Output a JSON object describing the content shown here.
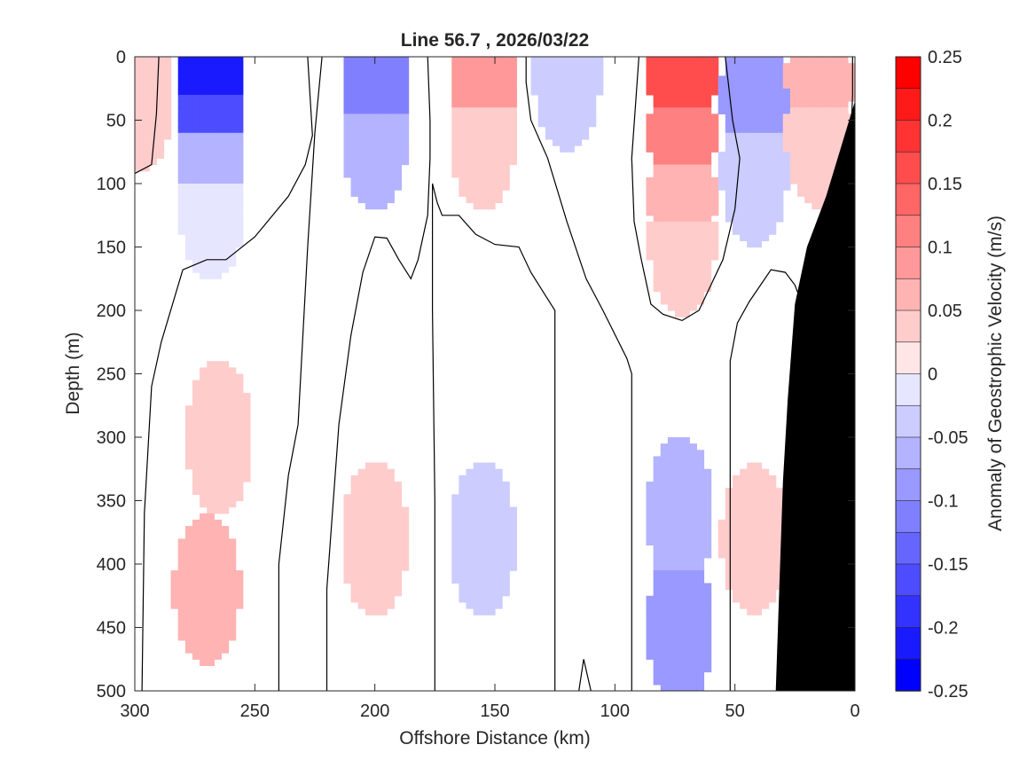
{
  "chart_data": {
    "type": "heatmap",
    "title": "Line 56.7 , 2026/03/22",
    "xlabel": "Offshore Distance (km)",
    "ylabel": "Depth (m)",
    "colorbar_label": "Anomaly of Geostrophic Velocity (m/s)",
    "xlim": [
      300,
      0
    ],
    "ylim": [
      0,
      500
    ],
    "x_ticks": [
      300,
      250,
      200,
      150,
      100,
      50,
      0
    ],
    "y_ticks": [
      0,
      50,
      100,
      150,
      200,
      250,
      300,
      350,
      400,
      450,
      500
    ],
    "colorbar_range": [
      -0.25,
      0.25
    ],
    "colorbar_step": 0.025,
    "colorbar_ticks": [
      "0.25",
      "0.2",
      "0.15",
      "0.1",
      "0.05",
      "0",
      "-0.05",
      "-0.1",
      "-0.15",
      "-0.2",
      "-0.25"
    ],
    "colormap": {
      "positive": "#ff0000",
      "negative": "#0000ff",
      "neutral": "#ffffff",
      "bottom_mask": "#000000",
      "contour_line": "#000000"
    },
    "anomaly_cells": [
      {
        "x": 298,
        "depth": 30,
        "value": 0.04
      },
      {
        "x": 268,
        "depth": 15,
        "value": -0.22
      },
      {
        "x": 268,
        "depth": 40,
        "value": -0.16
      },
      {
        "x": 268,
        "depth": 80,
        "value": -0.07
      },
      {
        "x": 268,
        "depth": 115,
        "value": -0.025
      },
      {
        "x": 200,
        "depth": 25,
        "value": -0.12
      },
      {
        "x": 200,
        "depth": 60,
        "value": -0.06
      },
      {
        "x": 155,
        "depth": 20,
        "value": 0.09
      },
      {
        "x": 155,
        "depth": 60,
        "value": 0.045
      },
      {
        "x": 120,
        "depth": 15,
        "value": -0.03
      },
      {
        "x": 72,
        "depth": 15,
        "value": 0.17
      },
      {
        "x": 72,
        "depth": 60,
        "value": 0.12
      },
      {
        "x": 72,
        "depth": 110,
        "value": 0.06
      },
      {
        "x": 72,
        "depth": 145,
        "value": 0.03
      },
      {
        "x": 42,
        "depth": 30,
        "value": -0.09
      },
      {
        "x": 42,
        "depth": 90,
        "value": -0.04
      },
      {
        "x": 15,
        "depth": 20,
        "value": 0.07
      },
      {
        "x": 15,
        "depth": 60,
        "value": 0.035
      },
      {
        "x": 265,
        "depth": 300,
        "value": 0.03
      },
      {
        "x": 270,
        "depth": 420,
        "value": 0.055
      },
      {
        "x": 200,
        "depth": 380,
        "value": 0.035
      },
      {
        "x": 155,
        "depth": 380,
        "value": -0.03
      },
      {
        "x": 73,
        "depth": 360,
        "value": -0.06
      },
      {
        "x": 73,
        "depth": 450,
        "value": -0.1
      },
      {
        "x": 42,
        "depth": 380,
        "value": 0.03
      }
    ],
    "bottom_profile": [
      {
        "x": 0,
        "depth": 35
      },
      {
        "x": 12,
        "depth": 110
      },
      {
        "x": 20,
        "depth": 150
      },
      {
        "x": 25,
        "depth": 195
      },
      {
        "x": 28,
        "depth": 270
      },
      {
        "x": 30,
        "depth": 335
      },
      {
        "x": 33,
        "depth": 500
      }
    ],
    "zero_contours": [
      [
        [
          300,
          92
        ],
        [
          293,
          85
        ],
        [
          291,
          45
        ],
        [
          290,
          0
        ]
      ],
      [
        [
          297,
          500
        ],
        [
          296,
          360
        ],
        [
          293,
          260
        ],
        [
          289,
          225
        ],
        [
          280,
          168
        ],
        [
          270,
          160
        ],
        [
          262,
          160
        ],
        [
          250,
          142
        ],
        [
          236,
          110
        ],
        [
          229,
          85
        ],
        [
          226,
          62
        ],
        [
          228,
          0
        ]
      ],
      [
        [
          240,
          500
        ],
        [
          240,
          400
        ],
        [
          236,
          330
        ],
        [
          232,
          290
        ],
        [
          228,
          150
        ],
        [
          225,
          60
        ],
        [
          222,
          0
        ]
      ],
      [
        [
          220,
          500
        ],
        [
          220,
          420
        ],
        [
          215,
          290
        ],
        [
          210,
          220
        ],
        [
          205,
          170
        ],
        [
          200,
          142
        ],
        [
          195,
          143
        ],
        [
          190,
          160
        ],
        [
          185,
          175
        ],
        [
          182,
          160
        ],
        [
          178,
          125
        ],
        [
          177,
          80
        ],
        [
          177,
          50
        ],
        [
          178,
          0
        ]
      ],
      [
        [
          175,
          500
        ],
        [
          175,
          350
        ],
        [
          176,
          200
        ],
        [
          176,
          100
        ],
        [
          174,
          115
        ],
        [
          172,
          125
        ],
        [
          165,
          125
        ],
        [
          158,
          140
        ],
        [
          150,
          148
        ],
        [
          140,
          150
        ],
        [
          135,
          170
        ],
        [
          130,
          185
        ],
        [
          125,
          200
        ],
        [
          125,
          300
        ],
        [
          125,
          500
        ]
      ],
      [
        [
          110,
          500
        ],
        [
          113,
          475
        ],
        [
          115,
          500
        ]
      ],
      [
        [
          93,
          500
        ],
        [
          93,
          250
        ],
        [
          95,
          238
        ],
        [
          105,
          200
        ],
        [
          112,
          175
        ],
        [
          120,
          130
        ],
        [
          128,
          80
        ],
        [
          135,
          50
        ],
        [
          137,
          20
        ],
        [
          137,
          0
        ]
      ],
      [
        [
          90,
          0
        ],
        [
          93,
          80
        ],
        [
          92,
          130
        ],
        [
          89,
          160
        ],
        [
          85,
          195
        ],
        [
          80,
          203
        ],
        [
          72,
          208
        ],
        [
          65,
          200
        ],
        [
          55,
          160
        ],
        [
          50,
          120
        ],
        [
          48,
          80
        ],
        [
          51,
          50
        ],
        [
          54,
          0
        ]
      ],
      [
        [
          52,
          500
        ],
        [
          52,
          300
        ],
        [
          52,
          240
        ],
        [
          49,
          210
        ],
        [
          44,
          193
        ],
        [
          35,
          168
        ],
        [
          29,
          170
        ],
        [
          25,
          180
        ],
        [
          23,
          190
        ]
      ],
      [
        [
          10,
          150
        ],
        [
          5,
          110
        ],
        [
          2,
          80
        ],
        [
          1,
          30
        ],
        [
          1,
          0
        ]
      ]
    ]
  }
}
